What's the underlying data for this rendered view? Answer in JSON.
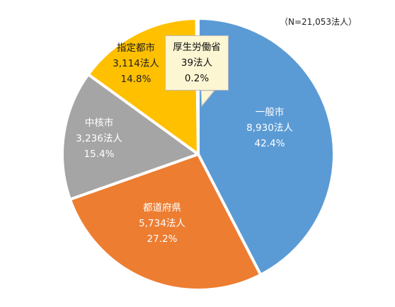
{
  "note": "（N=21,053法人）",
  "chart_data": {
    "type": "pie",
    "total_label": "N=21,053法人",
    "slices": [
      {
        "name": "一般市",
        "count_label": "8,930法人",
        "pct_label": "42.4%",
        "value": 42.4,
        "color": "#5b9bd5",
        "text_color": "#ffffff"
      },
      {
        "name": "都道府県",
        "count_label": "5,734法人",
        "pct_label": "27.2%",
        "value": 27.2,
        "color": "#ed7d31",
        "text_color": "#ffffff"
      },
      {
        "name": "中核市",
        "count_label": "3,236法人",
        "pct_label": "15.4%",
        "value": 15.4,
        "color": "#a5a5a5",
        "text_color": "#ffffff"
      },
      {
        "name": "指定都市",
        "count_label": "3,114法人",
        "pct_label": "14.8%",
        "value": 14.8,
        "color": "#ffc000",
        "text_color": "#222222"
      },
      {
        "name": "厚生労働省",
        "count_label": "39法人",
        "pct_label": "0.2%",
        "value": 0.2,
        "color": "#4472c4",
        "text_color": "#111111"
      }
    ],
    "legend": "none"
  }
}
